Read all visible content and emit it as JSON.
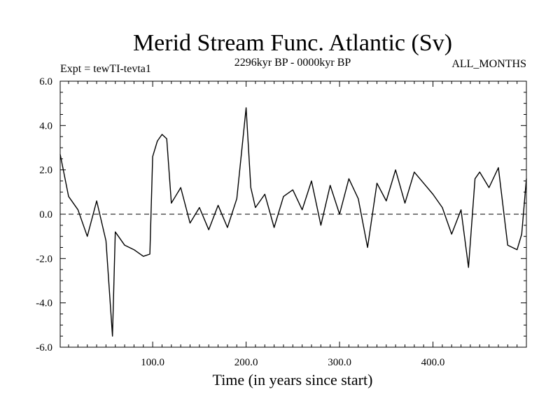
{
  "chart_data": {
    "type": "line",
    "title": "Merid Stream Func. Atlantic (Sv)",
    "subtitle_left": "Expt = tewTI-tevta1",
    "subtitle_center": "2296kyr BP - 0000kyr BP",
    "subtitle_right": "ALL_MONTHS",
    "xlabel": "Time (in years since start)",
    "ylabel": "",
    "xlim": [
      1,
      500
    ],
    "ylim": [
      -6.0,
      6.0
    ],
    "xticks": [
      100,
      200,
      300,
      400
    ],
    "xtick_labels": [
      "100.0",
      "200.0",
      "300.0",
      "400.0"
    ],
    "yticks": [
      -6,
      -4,
      -2,
      0,
      2,
      4,
      6
    ],
    "ytick_labels": [
      "-6.0",
      "-4.0",
      "-2.0",
      "0.0",
      "2.0",
      "4.0",
      "6.0"
    ],
    "zero_line": "dashed",
    "series": [
      {
        "name": "Merid Stream Func. Atlantic",
        "x": [
          1,
          10,
          20,
          30,
          40,
          50,
          57,
          60,
          70,
          80,
          90,
          97,
          100,
          105,
          110,
          115,
          120,
          130,
          140,
          150,
          160,
          170,
          180,
          190,
          200,
          205,
          210,
          220,
          230,
          240,
          250,
          260,
          270,
          280,
          290,
          300,
          310,
          320,
          330,
          340,
          350,
          360,
          370,
          380,
          390,
          400,
          410,
          420,
          430,
          438,
          445,
          450,
          460,
          470,
          480,
          490,
          495,
          500
        ],
        "values": [
          2.7,
          0.8,
          0.2,
          -1.0,
          0.6,
          -1.2,
          -5.5,
          -0.8,
          -1.4,
          -1.6,
          -1.9,
          -1.8,
          2.6,
          3.3,
          3.6,
          3.4,
          0.5,
          1.2,
          -0.4,
          0.3,
          -0.7,
          0.4,
          -0.6,
          0.7,
          4.8,
          1.2,
          0.3,
          0.9,
          -0.6,
          0.8,
          1.1,
          0.2,
          1.5,
          -0.5,
          1.3,
          0.0,
          1.6,
          0.7,
          -1.5,
          1.4,
          0.6,
          2.0,
          0.5,
          1.9,
          1.4,
          0.9,
          0.3,
          -0.9,
          0.2,
          -2.4,
          1.6,
          1.9,
          1.2,
          2.1,
          -1.4,
          -1.6,
          -0.9,
          1.6
        ]
      }
    ]
  }
}
